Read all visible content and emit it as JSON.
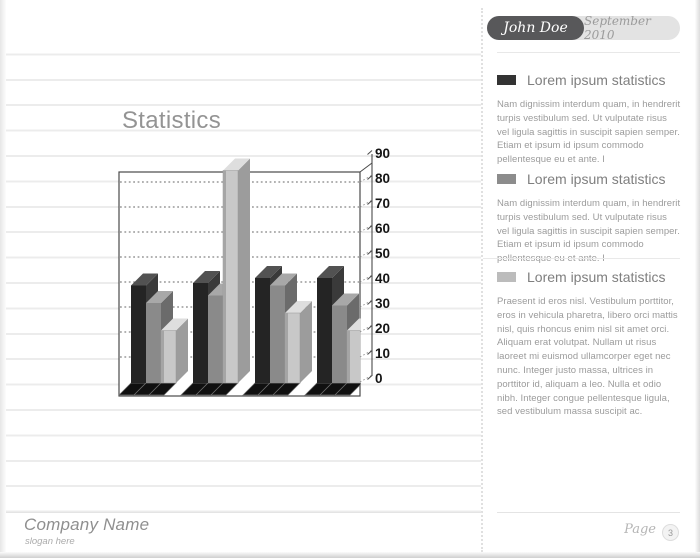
{
  "header": {
    "author": "John Doe",
    "date": "September 2010",
    "author_pill_color": "#58585a",
    "date_pill_color": "#e3e3e3"
  },
  "sidebar": {
    "sections": [
      {
        "label": "Lorem ipsum statistics",
        "color": "#333333",
        "body": "Nam dignissim interdum quam, in hendrerit turpis vestibulum sed. Ut vulputate risus vel ligula sagittis in suscipit sapien semper. Etiam et ipsum id ipsum commodo pellentesque eu et ante. I"
      },
      {
        "label": "Lorem ipsum statistics",
        "color": "#8c8c8c",
        "body": "Nam dignissim interdum quam, in hendrerit turpis vestibulum sed. Ut vulputate risus vel ligula sagittis in suscipit sapien semper. Etiam et ipsum id ipsum commodo pellentesque eu et ante. I"
      },
      {
        "label": "Lorem ipsum statistics",
        "color": "#bcbcbc",
        "body": "Praesent id eros nisl. Vestibulum porttitor, eros in vehicula pharetra, libero orci mattis nisl, quis rhoncus enim nisl sit amet orci. Aliquam erat volutpat. Nullam ut risus laoreet mi euismod ullamcorper eget nec nunc. Integer justo massa, ultrices in porttitor id, aliquam a leo. Nulla et odio nibh. Integer congue pellentesque ligula, sed vestibulum massa suscipit ac."
      }
    ]
  },
  "footer": {
    "company": "Company Name",
    "slogan": "slogan here",
    "page_label": "Page",
    "page_number": "3"
  },
  "chart_data": {
    "type": "bar",
    "style": "3d",
    "title": "Statistics",
    "xlabel": "",
    "ylabel": "",
    "categories": [
      "",
      "",
      "",
      ""
    ],
    "series": [
      {
        "name": "dark",
        "color": "#242424",
        "top": "#525252",
        "side": "#3a3a3a",
        "values": [
          39,
          40,
          42,
          42
        ]
      },
      {
        "name": "medium",
        "color": "#8a8a8a",
        "top": "#a8a8a8",
        "side": "#6b6b6b",
        "values": [
          32,
          35,
          39,
          31
        ]
      },
      {
        "name": "light",
        "color": "#c8c8c8",
        "top": "#dedede",
        "side": "#9c9c9c",
        "edge": "#a5a5a5",
        "values": [
          21,
          85,
          28,
          21
        ]
      }
    ],
    "ylim": [
      0,
      90
    ],
    "yticks": [
      0,
      10,
      20,
      30,
      40,
      50,
      60,
      70,
      80,
      90
    ],
    "grid": "dashed-horizontal",
    "legend": "none"
  }
}
